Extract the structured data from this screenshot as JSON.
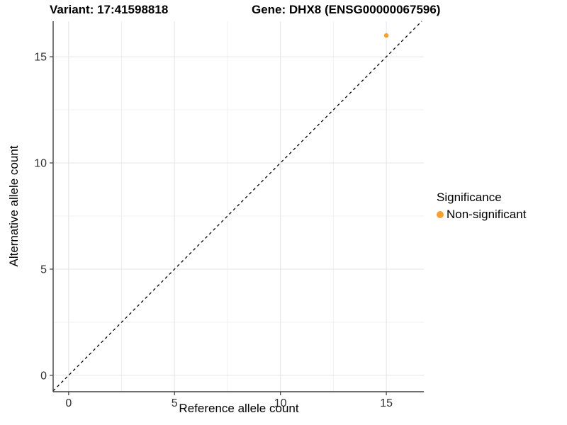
{
  "header": {
    "variant_title": "Variant: 17:41598818",
    "gene_title": "Gene: DHX8 (ENSG00000067596)"
  },
  "chart_data": {
    "type": "scatter",
    "title": "Variant: 17:41598818   Gene: DHX8 (ENSG00000067596)",
    "xlabel": "Reference allele count",
    "ylabel": "Alternative allele count",
    "points": [
      {
        "x": 15,
        "y": 16,
        "series": "Non-significant"
      }
    ],
    "series": [
      {
        "name": "Non-significant",
        "color": "#F9A032"
      }
    ],
    "xlim": [
      -0.73,
      16.77
    ],
    "ylim": [
      -0.77,
      16.67
    ],
    "x_major_ticks": [
      0,
      5,
      10,
      15
    ],
    "y_major_ticks": [
      0,
      5,
      10,
      15
    ],
    "x_minor_ticks": [
      2.5,
      7.5,
      12.5
    ],
    "y_minor_ticks": [
      2.5,
      7.5,
      12.5
    ],
    "grid": "major+minor",
    "reference_line": {
      "type": "identity y=x",
      "style": "dashed",
      "color": "#000000"
    },
    "legend": {
      "title": "Significance",
      "position": "right",
      "items": [
        {
          "label": "Non-significant",
          "color": "#F9A032"
        }
      ]
    }
  },
  "colors": {
    "point": "#F9A032",
    "grid_major": "#E4E4E4",
    "grid_minor": "#F0F0F0",
    "axis_line": "#3F3F3F",
    "tick_label": "#303030",
    "dashed_line": "#000000",
    "background": "#FFFFFF"
  }
}
